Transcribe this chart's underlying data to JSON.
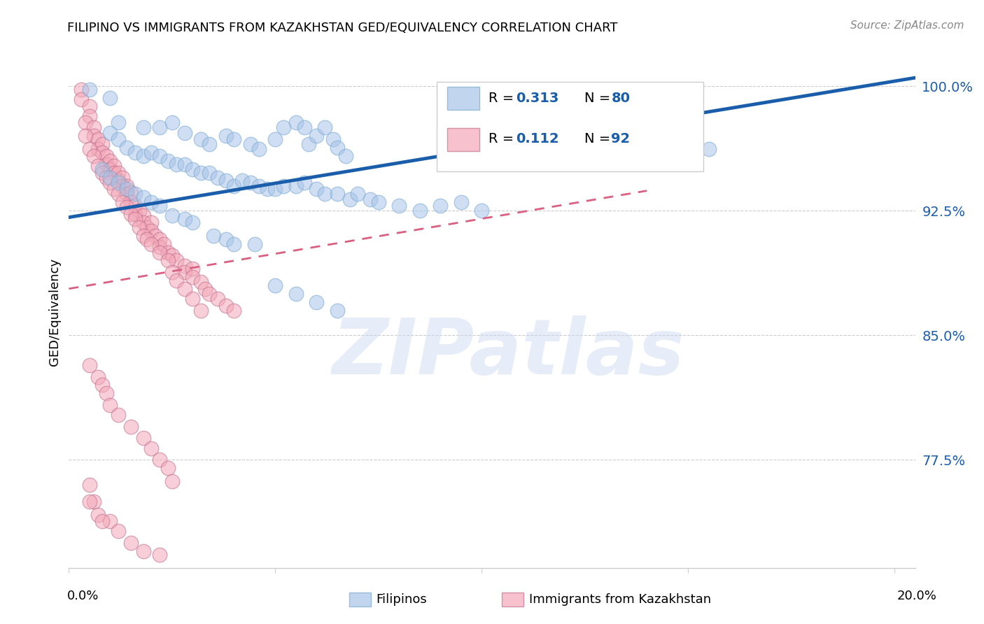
{
  "title": "FILIPINO VS IMMIGRANTS FROM KAZAKHSTAN GED/EQUIVALENCY CORRELATION CHART",
  "source": "Source: ZipAtlas.com",
  "ylabel": "GED/Equivalency",
  "watermark": "ZIPatlas",
  "blue_color": "#A8C4E8",
  "pink_color": "#F4A8B8",
  "blue_line_color": "#1A5DAB",
  "pink_line_color": "#D96080",
  "blue_edge_color": "#7AAAD0",
  "pink_edge_color": "#C07090",
  "r_value_color": "#1A5DAB",
  "xmin": 0.0,
  "xmax": 0.205,
  "ymin": 0.71,
  "ymax": 1.018,
  "blue_line_x0": 0.0,
  "blue_line_y0": 0.921,
  "blue_line_x1": 0.205,
  "blue_line_y1": 1.005,
  "pink_line_x0": 0.0,
  "pink_line_y0": 0.878,
  "pink_line_x1": 0.14,
  "pink_line_y1": 0.937,
  "blue_dots": [
    [
      0.005,
      0.998
    ],
    [
      0.01,
      0.993
    ],
    [
      0.012,
      0.978
    ],
    [
      0.018,
      0.975
    ],
    [
      0.022,
      0.975
    ],
    [
      0.025,
      0.978
    ],
    [
      0.028,
      0.972
    ],
    [
      0.032,
      0.968
    ],
    [
      0.034,
      0.965
    ],
    [
      0.038,
      0.97
    ],
    [
      0.04,
      0.968
    ],
    [
      0.044,
      0.965
    ],
    [
      0.046,
      0.962
    ],
    [
      0.05,
      0.968
    ],
    [
      0.052,
      0.975
    ],
    [
      0.055,
      0.978
    ],
    [
      0.057,
      0.975
    ],
    [
      0.058,
      0.965
    ],
    [
      0.06,
      0.97
    ],
    [
      0.062,
      0.975
    ],
    [
      0.064,
      0.968
    ],
    [
      0.065,
      0.963
    ],
    [
      0.067,
      0.958
    ],
    [
      0.01,
      0.972
    ],
    [
      0.012,
      0.968
    ],
    [
      0.014,
      0.963
    ],
    [
      0.016,
      0.96
    ],
    [
      0.018,
      0.958
    ],
    [
      0.02,
      0.96
    ],
    [
      0.022,
      0.958
    ],
    [
      0.024,
      0.955
    ],
    [
      0.026,
      0.953
    ],
    [
      0.028,
      0.953
    ],
    [
      0.03,
      0.95
    ],
    [
      0.032,
      0.948
    ],
    [
      0.034,
      0.948
    ],
    [
      0.036,
      0.945
    ],
    [
      0.038,
      0.943
    ],
    [
      0.04,
      0.94
    ],
    [
      0.042,
      0.943
    ],
    [
      0.044,
      0.942
    ],
    [
      0.046,
      0.94
    ],
    [
      0.048,
      0.938
    ],
    [
      0.05,
      0.938
    ],
    [
      0.052,
      0.94
    ],
    [
      0.055,
      0.94
    ],
    [
      0.057,
      0.942
    ],
    [
      0.06,
      0.938
    ],
    [
      0.062,
      0.935
    ],
    [
      0.065,
      0.935
    ],
    [
      0.068,
      0.932
    ],
    [
      0.07,
      0.935
    ],
    [
      0.073,
      0.932
    ],
    [
      0.075,
      0.93
    ],
    [
      0.08,
      0.928
    ],
    [
      0.085,
      0.925
    ],
    [
      0.09,
      0.928
    ],
    [
      0.095,
      0.93
    ],
    [
      0.1,
      0.925
    ],
    [
      0.008,
      0.95
    ],
    [
      0.01,
      0.945
    ],
    [
      0.012,
      0.942
    ],
    [
      0.014,
      0.938
    ],
    [
      0.016,
      0.935
    ],
    [
      0.018,
      0.933
    ],
    [
      0.02,
      0.93
    ],
    [
      0.022,
      0.928
    ],
    [
      0.025,
      0.922
    ],
    [
      0.028,
      0.92
    ],
    [
      0.03,
      0.918
    ],
    [
      0.035,
      0.91
    ],
    [
      0.038,
      0.908
    ],
    [
      0.04,
      0.905
    ],
    [
      0.045,
      0.905
    ],
    [
      0.05,
      0.88
    ],
    [
      0.055,
      0.875
    ],
    [
      0.06,
      0.87
    ],
    [
      0.065,
      0.865
    ],
    [
      0.155,
      0.962
    ]
  ],
  "pink_dots": [
    [
      0.003,
      0.998
    ],
    [
      0.003,
      0.992
    ],
    [
      0.005,
      0.988
    ],
    [
      0.005,
      0.982
    ],
    [
      0.004,
      0.978
    ],
    [
      0.006,
      0.975
    ],
    [
      0.006,
      0.97
    ],
    [
      0.007,
      0.968
    ],
    [
      0.007,
      0.962
    ],
    [
      0.008,
      0.965
    ],
    [
      0.008,
      0.96
    ],
    [
      0.009,
      0.958
    ],
    [
      0.009,
      0.953
    ],
    [
      0.01,
      0.955
    ],
    [
      0.01,
      0.95
    ],
    [
      0.011,
      0.952
    ],
    [
      0.011,
      0.948
    ],
    [
      0.012,
      0.948
    ],
    [
      0.012,
      0.943
    ],
    [
      0.013,
      0.945
    ],
    [
      0.013,
      0.94
    ],
    [
      0.014,
      0.94
    ],
    [
      0.014,
      0.935
    ],
    [
      0.015,
      0.936
    ],
    [
      0.015,
      0.93
    ],
    [
      0.016,
      0.928
    ],
    [
      0.016,
      0.923
    ],
    [
      0.017,
      0.925
    ],
    [
      0.018,
      0.922
    ],
    [
      0.018,
      0.918
    ],
    [
      0.019,
      0.915
    ],
    [
      0.02,
      0.918
    ],
    [
      0.02,
      0.913
    ],
    [
      0.021,
      0.91
    ],
    [
      0.022,
      0.908
    ],
    [
      0.022,
      0.903
    ],
    [
      0.023,
      0.905
    ],
    [
      0.024,
      0.9
    ],
    [
      0.025,
      0.898
    ],
    [
      0.026,
      0.895
    ],
    [
      0.028,
      0.892
    ],
    [
      0.028,
      0.888
    ],
    [
      0.03,
      0.89
    ],
    [
      0.03,
      0.885
    ],
    [
      0.032,
      0.882
    ],
    [
      0.033,
      0.878
    ],
    [
      0.034,
      0.875
    ],
    [
      0.036,
      0.872
    ],
    [
      0.038,
      0.868
    ],
    [
      0.04,
      0.865
    ],
    [
      0.004,
      0.97
    ],
    [
      0.005,
      0.962
    ],
    [
      0.006,
      0.958
    ],
    [
      0.007,
      0.952
    ],
    [
      0.008,
      0.948
    ],
    [
      0.009,
      0.945
    ],
    [
      0.01,
      0.942
    ],
    [
      0.011,
      0.938
    ],
    [
      0.012,
      0.935
    ],
    [
      0.013,
      0.93
    ],
    [
      0.014,
      0.927
    ],
    [
      0.015,
      0.923
    ],
    [
      0.016,
      0.92
    ],
    [
      0.017,
      0.915
    ],
    [
      0.018,
      0.91
    ],
    [
      0.019,
      0.908
    ],
    [
      0.02,
      0.905
    ],
    [
      0.022,
      0.9
    ],
    [
      0.024,
      0.895
    ],
    [
      0.025,
      0.888
    ],
    [
      0.026,
      0.883
    ],
    [
      0.028,
      0.878
    ],
    [
      0.03,
      0.872
    ],
    [
      0.032,
      0.865
    ],
    [
      0.005,
      0.832
    ],
    [
      0.007,
      0.825
    ],
    [
      0.008,
      0.82
    ],
    [
      0.009,
      0.815
    ],
    [
      0.01,
      0.808
    ],
    [
      0.012,
      0.802
    ],
    [
      0.015,
      0.795
    ],
    [
      0.018,
      0.788
    ],
    [
      0.02,
      0.782
    ],
    [
      0.022,
      0.775
    ],
    [
      0.024,
      0.77
    ],
    [
      0.025,
      0.762
    ],
    [
      0.005,
      0.76
    ],
    [
      0.006,
      0.75
    ],
    [
      0.007,
      0.742
    ],
    [
      0.01,
      0.738
    ],
    [
      0.012,
      0.732
    ],
    [
      0.015,
      0.725
    ],
    [
      0.018,
      0.72
    ],
    [
      0.022,
      0.718
    ],
    [
      0.005,
      0.75
    ],
    [
      0.008,
      0.738
    ]
  ]
}
